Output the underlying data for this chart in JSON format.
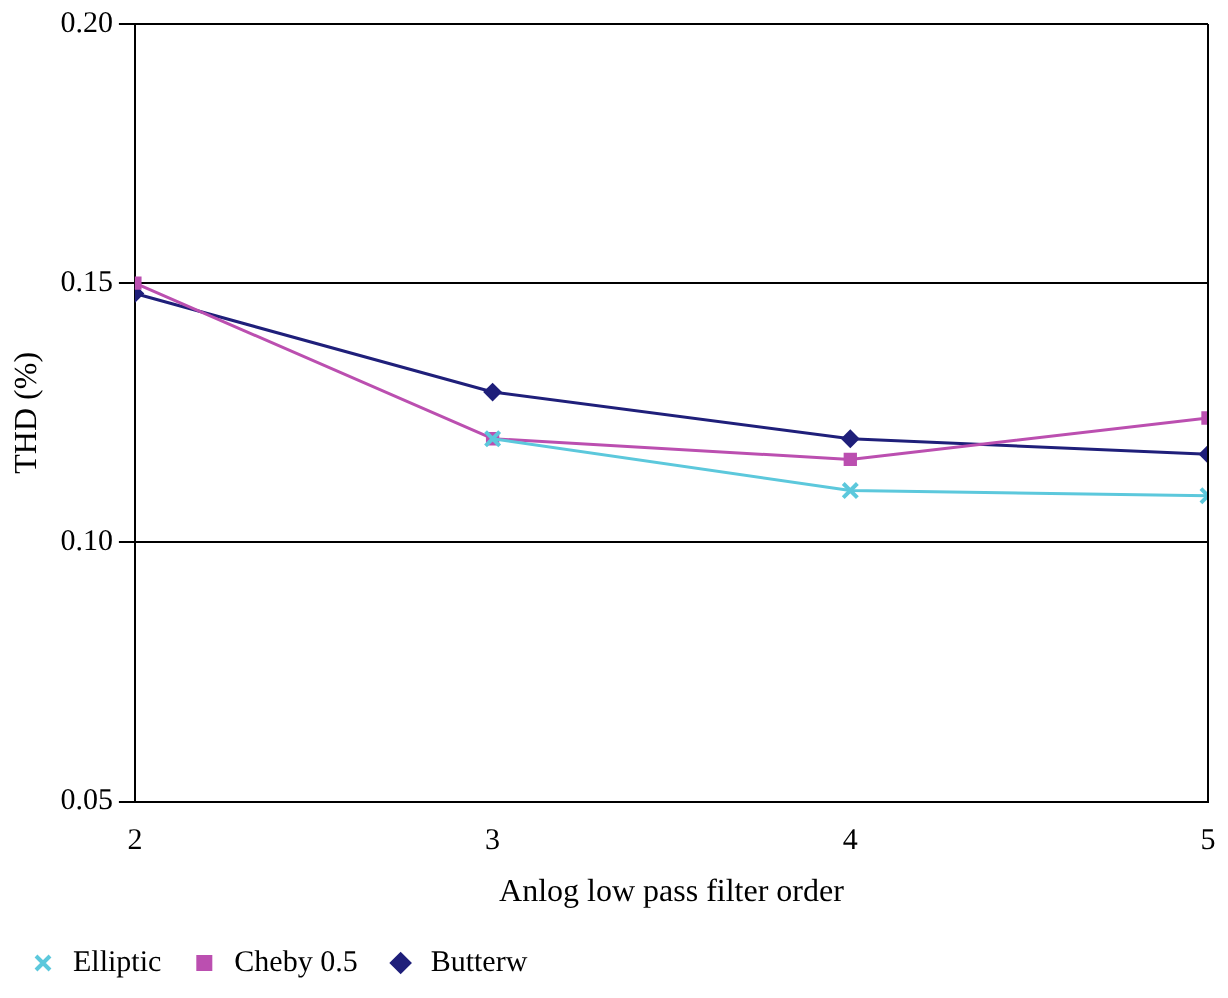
{
  "chart_data": {
    "type": "line",
    "xlabel": "Anlog low pass filter order",
    "ylabel": "THD (%)",
    "x": [
      2,
      3,
      4,
      5
    ],
    "series": [
      {
        "name": "Butterw",
        "color": "#1f1f7a",
        "marker": "diamond",
        "values": [
          0.148,
          0.129,
          0.12,
          0.117
        ]
      },
      {
        "name": "Cheby 0.5",
        "color": "#bb4fb0",
        "marker": "square",
        "values": [
          0.15,
          0.12,
          0.116,
          0.124
        ]
      },
      {
        "name": "Elliptic",
        "color": "#5cc8dc",
        "marker": "cross",
        "values": [
          null,
          0.12,
          0.11,
          0.109
        ]
      }
    ],
    "xlim": [
      2,
      5
    ],
    "xticks": [
      2,
      3,
      4,
      5
    ],
    "ylim": [
      0.05,
      0.2
    ],
    "yticks": [
      {
        "value": 0.05,
        "label": "0.05"
      },
      {
        "value": 0.1,
        "label": "0.10"
      },
      {
        "value": 0.15,
        "label": "0.15"
      },
      {
        "value": 0.2,
        "label": "0.20"
      }
    ],
    "grid": "y",
    "legend": "bottom"
  }
}
